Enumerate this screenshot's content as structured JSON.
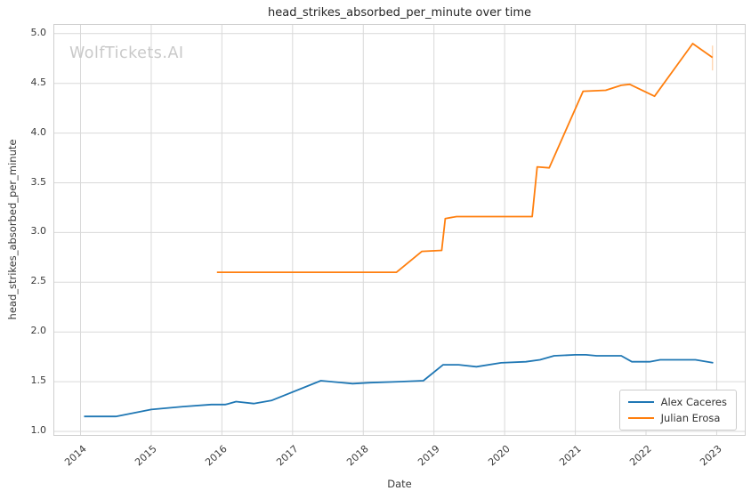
{
  "chart": {
    "title": "head_strikes_absorbed_per_minute over time",
    "xlabel": "Date",
    "ylabel": "head_strikes_absorbed_per_minute",
    "watermark": "WolfTickets.AI"
  },
  "chart_data": {
    "type": "line",
    "title": "head_strikes_absorbed_per_minute over time",
    "xlabel": "Date",
    "ylabel": "head_strikes_absorbed_per_minute",
    "grid": true,
    "legend_position": "lower right",
    "background": "#ffffff",
    "gridline_color": "#d9d9d9",
    "spine_color": "#cfcfcf",
    "watermark_color": "#c9c9c9",
    "xlim": [
      2013.62,
      2023.42
    ],
    "ylim": [
      0.95,
      5.1
    ],
    "xticks": [
      2014,
      2015,
      2016,
      2017,
      2018,
      2019,
      2020,
      2021,
      2022,
      2023
    ],
    "yticks": [
      1.0,
      1.5,
      2.0,
      2.5,
      3.0,
      3.5,
      4.0,
      4.5,
      5.0
    ],
    "series": [
      {
        "name": "Alex Caceres",
        "color": "#1f77b4",
        "points": [
          [
            2014.05,
            1.15
          ],
          [
            2014.5,
            1.15
          ],
          [
            2015.0,
            1.22
          ],
          [
            2015.45,
            1.25
          ],
          [
            2015.85,
            1.27
          ],
          [
            2016.05,
            1.27
          ],
          [
            2016.2,
            1.3
          ],
          [
            2016.45,
            1.28
          ],
          [
            2016.7,
            1.31
          ],
          [
            2017.4,
            1.51
          ],
          [
            2017.85,
            1.48
          ],
          [
            2018.1,
            1.49
          ],
          [
            2018.5,
            1.5
          ],
          [
            2018.85,
            1.51
          ],
          [
            2019.13,
            1.67
          ],
          [
            2019.35,
            1.67
          ],
          [
            2019.6,
            1.65
          ],
          [
            2019.95,
            1.69
          ],
          [
            2020.3,
            1.7
          ],
          [
            2020.5,
            1.72
          ],
          [
            2020.7,
            1.76
          ],
          [
            2021.0,
            1.77
          ],
          [
            2021.15,
            1.77
          ],
          [
            2021.3,
            1.76
          ],
          [
            2021.65,
            1.76
          ],
          [
            2021.8,
            1.7
          ],
          [
            2022.05,
            1.7
          ],
          [
            2022.2,
            1.72
          ],
          [
            2022.7,
            1.72
          ],
          [
            2022.95,
            1.69
          ]
        ]
      },
      {
        "name": "Julian Erosa",
        "color": "#ff7f0e",
        "points": [
          [
            2015.93,
            2.6
          ],
          [
            2018.47,
            2.6
          ],
          [
            2018.83,
            2.81
          ],
          [
            2019.11,
            2.82
          ],
          [
            2019.16,
            3.14
          ],
          [
            2019.32,
            3.16
          ],
          [
            2020.39,
            3.16
          ],
          [
            2020.46,
            3.66
          ],
          [
            2020.63,
            3.65
          ],
          [
            2021.11,
            4.42
          ],
          [
            2021.43,
            4.43
          ],
          [
            2021.65,
            4.48
          ],
          [
            2021.77,
            4.49
          ],
          [
            2022.12,
            4.37
          ],
          [
            2022.66,
            4.9
          ],
          [
            2022.94,
            4.76
          ]
        ],
        "end_tick": {
          "x": 2022.94,
          "from": 4.63,
          "to": 4.88,
          "opacity": 0.3
        }
      }
    ]
  }
}
